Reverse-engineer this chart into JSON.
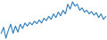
{
  "values": [
    -2.0,
    -1.0,
    -2.8,
    -1.5,
    -0.5,
    -2.0,
    -0.8,
    -1.8,
    -0.5,
    -1.2,
    -0.3,
    -0.8,
    -0.2,
    -0.6,
    0.0,
    -0.4,
    0.2,
    -0.3,
    0.5,
    0.1,
    0.8,
    0.3,
    1.2,
    0.6,
    1.5,
    0.9,
    1.8,
    1.2,
    2.8,
    2.0,
    3.2,
    2.5,
    2.8,
    1.8,
    2.2,
    1.5,
    1.8,
    1.2,
    1.6,
    1.0,
    1.4,
    0.6,
    1.2,
    0.3,
    0.8
  ],
  "line_color": "#2b7bba",
  "bg_color": "#ffffff",
  "linewidth": 0.8
}
